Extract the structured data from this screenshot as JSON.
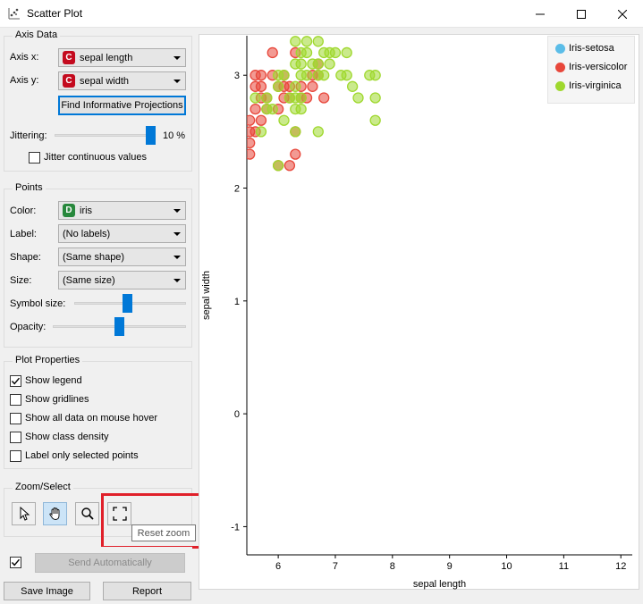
{
  "window": {
    "title": "Scatter Plot"
  },
  "axis_data": {
    "title": "Axis Data",
    "axis_x_label": "Axis x:",
    "axis_x_value": "sepal length",
    "axis_x_badge": "C",
    "axis_y_label": "Axis y:",
    "axis_y_value": "sepal width",
    "axis_y_badge": "C",
    "find_projections_label": "Find Informative Projections",
    "jittering_label": "Jittering:",
    "jittering_value": "10 %",
    "jitter_continuous_label": "Jitter continuous values",
    "jitter_continuous_checked": false
  },
  "points": {
    "title": "Points",
    "color_label": "Color:",
    "color_value": "iris",
    "color_badge": "D",
    "label_label": "Label:",
    "label_value": "(No labels)",
    "shape_label": "Shape:",
    "shape_value": "(Same shape)",
    "size_label": "Size:",
    "size_value": "(Same size)",
    "symbol_size_label": "Symbol size:",
    "opacity_label": "Opacity:"
  },
  "plot_properties": {
    "title": "Plot Properties",
    "options": [
      {
        "label": "Show legend",
        "checked": true
      },
      {
        "label": "Show gridlines",
        "checked": false
      },
      {
        "label": "Show all data on mouse hover",
        "checked": false
      },
      {
        "label": "Show class density",
        "checked": false
      },
      {
        "label": "Label only selected points",
        "checked": false
      }
    ]
  },
  "zoom_select": {
    "title": "Zoom/Select",
    "tools": [
      {
        "name": "select-tool",
        "icon": "pointer-icon"
      },
      {
        "name": "pan-tool",
        "icon": "hand-icon"
      },
      {
        "name": "zoom-tool",
        "icon": "magnifier-icon"
      },
      {
        "name": "reset-zoom-tool",
        "icon": "reset-zoom-icon"
      }
    ],
    "tooltip": "Reset zoom"
  },
  "footer": {
    "send_automatically_label": "Send Automatically",
    "send_automatically_checked": true,
    "save_image_label": "Save Image",
    "report_label": "Report"
  },
  "colors": {
    "setosa": "#5bbde8",
    "versicolor": "#e8473b",
    "virginica": "#9fd82e",
    "accent": "#0078d7",
    "highlight": "#e0202a",
    "badge_c": "#c40a1e",
    "badge_d": "#27883c"
  },
  "chart_data": {
    "type": "scatter",
    "xlabel": "sepal length",
    "ylabel": "sepal width",
    "xlim": [
      5.45,
      12.2
    ],
    "ylim": [
      -1.25,
      3.35
    ],
    "xticks": [
      "6",
      "7",
      "8",
      "9",
      "10",
      "11",
      "12"
    ],
    "yticks": [
      "-1",
      "0",
      "1",
      "2",
      "3"
    ],
    "legend": {
      "placement": "top-right",
      "entries": [
        {
          "name": "Iris-setosa",
          "color": "#5bbde8"
        },
        {
          "name": "Iris-versicolor",
          "color": "#e8473b"
        },
        {
          "name": "Iris-virginica",
          "color": "#9fd82e"
        }
      ]
    },
    "series": [
      {
        "name": "Iris-versicolor",
        "points": [
          [
            5.5,
            2.3
          ],
          [
            5.5,
            2.4
          ],
          [
            5.5,
            2.6
          ],
          [
            5.6,
            2.9
          ],
          [
            5.6,
            3.0
          ],
          [
            5.6,
            2.5
          ],
          [
            5.7,
            2.8
          ],
          [
            5.7,
            2.6
          ],
          [
            5.7,
            3.0
          ],
          [
            5.8,
            2.7
          ],
          [
            5.8,
            2.8
          ],
          [
            5.9,
            3.0
          ],
          [
            6.0,
            2.2
          ],
          [
            6.0,
            2.9
          ],
          [
            6.1,
            2.8
          ],
          [
            6.1,
            2.9
          ],
          [
            6.2,
            2.2
          ],
          [
            6.2,
            2.9
          ],
          [
            6.3,
            2.3
          ],
          [
            6.3,
            2.5
          ],
          [
            6.4,
            2.9
          ],
          [
            6.4,
            2.8
          ],
          [
            6.5,
            2.8
          ],
          [
            6.6,
            2.9
          ],
          [
            6.6,
            3.0
          ],
          [
            6.7,
            3.0
          ],
          [
            6.7,
            3.1
          ],
          [
            6.8,
            2.8
          ],
          [
            5.5,
            2.5
          ],
          [
            5.6,
            2.7
          ],
          [
            5.7,
            2.9
          ],
          [
            6.0,
            2.7
          ],
          [
            6.1,
            3.0
          ],
          [
            6.2,
            2.8
          ],
          [
            5.9,
            3.2
          ],
          [
            6.3,
            3.2
          ]
        ]
      },
      {
        "name": "Iris-virginica",
        "points": [
          [
            5.6,
            2.8
          ],
          [
            5.7,
            2.5
          ],
          [
            5.8,
            2.7
          ],
          [
            5.8,
            2.8
          ],
          [
            6.0,
            2.2
          ],
          [
            6.0,
            3.0
          ],
          [
            6.1,
            2.6
          ],
          [
            6.1,
            3.0
          ],
          [
            6.2,
            2.8
          ],
          [
            6.2,
            3.4
          ],
          [
            6.3,
            2.5
          ],
          [
            6.3,
            2.7
          ],
          [
            6.3,
            2.8
          ],
          [
            6.3,
            2.9
          ],
          [
            6.3,
            3.3
          ],
          [
            6.4,
            2.7
          ],
          [
            6.4,
            2.8
          ],
          [
            6.4,
            3.1
          ],
          [
            6.4,
            3.2
          ],
          [
            6.5,
            3.0
          ],
          [
            6.5,
            3.2
          ],
          [
            6.5,
            3.3
          ],
          [
            6.7,
            2.5
          ],
          [
            6.7,
            3.0
          ],
          [
            6.7,
            3.1
          ],
          [
            6.7,
            3.3
          ],
          [
            6.8,
            3.0
          ],
          [
            6.8,
            3.2
          ],
          [
            6.9,
            3.1
          ],
          [
            6.9,
            3.2
          ],
          [
            7.0,
            3.2
          ],
          [
            7.1,
            3.0
          ],
          [
            7.2,
            3.0
          ],
          [
            7.2,
            3.2
          ],
          [
            7.3,
            2.9
          ],
          [
            7.4,
            2.8
          ],
          [
            7.6,
            3.0
          ],
          [
            7.7,
            2.6
          ],
          [
            7.7,
            2.8
          ],
          [
            7.7,
            3.0
          ],
          [
            5.9,
            2.7
          ],
          [
            6.0,
            2.9
          ],
          [
            6.4,
            3.0
          ],
          [
            6.6,
            3.1
          ],
          [
            6.3,
            3.1
          ]
        ]
      }
    ]
  }
}
